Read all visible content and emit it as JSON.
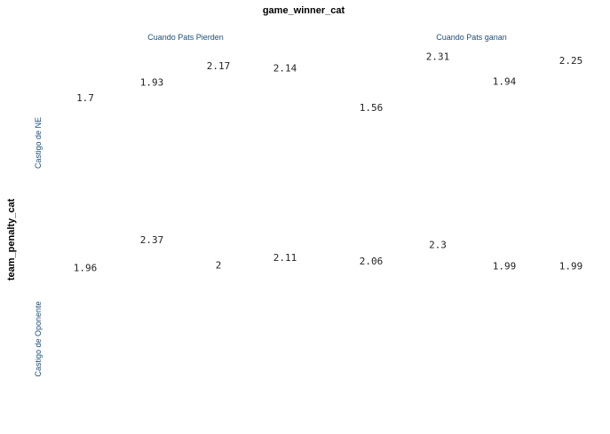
{
  "chart_data": {
    "type": "table",
    "col_facet_title": "game_winner_cat",
    "row_facet_title": "team_penalty_cat",
    "col_facets": [
      "Cuando Pats Pierden",
      "Cuando Pats ganan"
    ],
    "row_facets": [
      "Castigo de NE",
      "Castigo de Oponente"
    ],
    "cells": [
      {
        "row": 0,
        "col": 0,
        "values": [
          1.7,
          1.93,
          2.17,
          2.14
        ]
      },
      {
        "row": 0,
        "col": 1,
        "values": [
          1.56,
          2.31,
          1.94,
          2.25
        ]
      },
      {
        "row": 1,
        "col": 0,
        "values": [
          1.96,
          2.37,
          2,
          2.11
        ]
      },
      {
        "row": 1,
        "col": 1,
        "values": [
          2.06,
          2.3,
          1.99,
          1.99
        ]
      }
    ],
    "y_range": [
      1.0,
      2.6
    ],
    "grid": false,
    "legend": "none",
    "colors": {
      "facet_text": "#1f4e79",
      "value_text": "#222222",
      "title_text": "#000000"
    }
  }
}
